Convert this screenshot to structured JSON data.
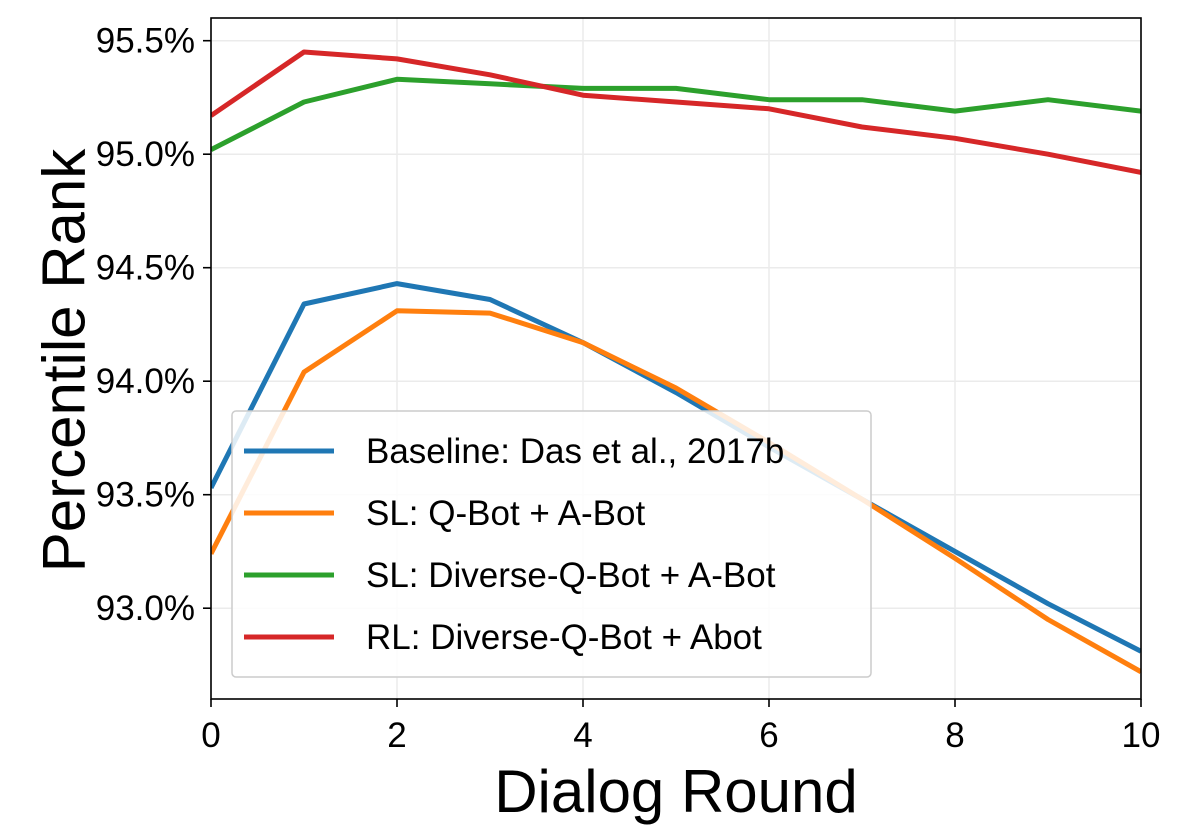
{
  "chart_data": {
    "type": "line",
    "title": "",
    "xlabel": "Dialog Round",
    "ylabel": "Percentile Rank",
    "xlim": [
      0,
      10
    ],
    "ylim": [
      92.6,
      95.6
    ],
    "x_ticks": [
      0,
      2,
      4,
      6,
      8,
      10
    ],
    "y_ticks": [
      93.0,
      93.5,
      94.0,
      94.5,
      95.0,
      95.5
    ],
    "y_tick_format": "percent_1dp",
    "grid": true,
    "legend_position": "lower-left",
    "x": [
      0,
      1,
      2,
      3,
      4,
      5,
      6,
      7,
      8,
      9,
      10
    ],
    "series": [
      {
        "name": "Baseline: Das et al., 2017b",
        "color": "#1f77b4",
        "values": [
          93.53,
          94.34,
          94.43,
          94.36,
          94.17,
          93.95,
          93.71,
          93.48,
          93.25,
          93.02,
          92.81
        ]
      },
      {
        "name": "SL: Q-Bot + A-Bot",
        "color": "#ff7f0e",
        "values": [
          93.24,
          94.04,
          94.31,
          94.3,
          94.17,
          93.97,
          93.73,
          93.48,
          93.22,
          92.95,
          92.72
        ]
      },
      {
        "name": "SL: Diverse-Q-Bot + A-Bot",
        "color": "#2ca02c",
        "values": [
          95.02,
          95.23,
          95.33,
          95.31,
          95.29,
          95.29,
          95.24,
          95.24,
          95.19,
          95.24,
          95.19
        ]
      },
      {
        "name": "RL: Diverse-Q-Bot + Abot",
        "color": "#d62728",
        "values": [
          95.17,
          95.45,
          95.42,
          95.35,
          95.26,
          95.23,
          95.2,
          95.12,
          95.07,
          95.0,
          94.92
        ]
      }
    ]
  }
}
